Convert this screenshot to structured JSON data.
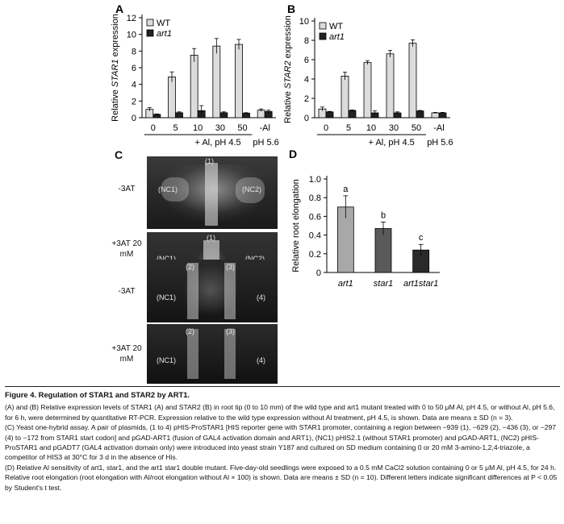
{
  "panels": {
    "A": {
      "letter": "A"
    },
    "B": {
      "letter": "B"
    },
    "C": {
      "letter": "C",
      "row_labels": [
        "-3AT",
        "+3AT 20 mM",
        "-3AT",
        "+3AT 20 mM"
      ],
      "spots": {
        "p1": "(1)",
        "p2": "(2)",
        "p3": "(3)",
        "p4": "(4)",
        "nc1": "(NC1)",
        "nc2": "(NC2)"
      }
    },
    "D": {
      "letter": "D"
    }
  },
  "chart_data": [
    {
      "type": "bar",
      "panel": "A",
      "ylabel": "Relative STAR1 expression",
      "ylim": [
        0,
        12
      ],
      "yticks": [
        0,
        2,
        4,
        6,
        8,
        10,
        12
      ],
      "categories": [
        "0",
        "5",
        "10",
        "30",
        "50",
        "-Al"
      ],
      "group_labels": [
        "+ Al, pH 4.5",
        "pH 5.6"
      ],
      "legend": [
        "WT",
        "art1"
      ],
      "series": [
        {
          "name": "WT",
          "color": "#dcdcdc",
          "values": [
            1.0,
            4.9,
            7.5,
            8.6,
            8.8,
            0.9
          ],
          "errors": [
            0.2,
            0.6,
            0.8,
            0.9,
            0.6,
            0.15
          ]
        },
        {
          "name": "art1",
          "color": "#222222",
          "values": [
            0.4,
            0.6,
            0.85,
            0.6,
            0.55,
            0.75
          ],
          "errors": [
            0.05,
            0.1,
            0.6,
            0.1,
            0.05,
            0.15
          ]
        }
      ]
    },
    {
      "type": "bar",
      "panel": "B",
      "ylabel": "Relative STAR2 expression",
      "ylim": [
        0,
        10
      ],
      "yticks": [
        0,
        2,
        4,
        6,
        8,
        10
      ],
      "categories": [
        "0",
        "5",
        "10",
        "30",
        "50",
        "-Al"
      ],
      "group_labels": [
        "+ Al, pH 4.5",
        "pH 5.6"
      ],
      "legend": [
        "WT",
        "art1"
      ],
      "series": [
        {
          "name": "WT",
          "color": "#dcdcdc",
          "values": [
            0.9,
            4.3,
            5.7,
            6.6,
            7.7,
            0.5
          ],
          "errors": [
            0.2,
            0.4,
            0.2,
            0.35,
            0.35,
            0.05
          ]
        },
        {
          "name": "art1",
          "color": "#222222",
          "values": [
            0.6,
            0.75,
            0.5,
            0.5,
            0.7,
            0.5
          ],
          "errors": [
            0.05,
            0.05,
            0.2,
            0.1,
            0.05,
            0.05
          ]
        }
      ]
    },
    {
      "type": "bar",
      "panel": "D",
      "ylabel": "Relative root elongation",
      "ylim": [
        0,
        1.0
      ],
      "yticks": [
        "0",
        "0.2",
        "0.4",
        "0.6",
        "0.8",
        "1.0"
      ],
      "categories": [
        "art1",
        "star1",
        "art1star1"
      ],
      "values": [
        0.7,
        0.47,
        0.24
      ],
      "errors": [
        0.12,
        0.07,
        0.06
      ],
      "letters": [
        "a",
        "b",
        "c"
      ],
      "colors": [
        "#a8a8a8",
        "#5a5a5a",
        "#2a2a2a"
      ]
    }
  ],
  "caption": {
    "title": "Figure 4. Regulation of STAR1 and STAR2 by ART1.",
    "ab": "(A) and (B) Relative expression levels of STAR1 (A) and STAR2 (B) in root tip (0 to 10 mm) of the wild type and art1 mutant treated with 0 to 50 μM Al, pH 4.5, or without Al, pH 5.6, for 6 h, were determined by quantitative RT-PCR. Expression relative to the wild type expression without Al treatment, pH 4.5, is shown. Data are means ± SD (n = 3).",
    "c": "(C) Yeast one-hybrid assay. A pair of plasmids, (1 to 4) pHIS-ProSTAR1 [HIS reporter gene with STAR1 promoter, containing a region between −939 (1), −629 (2), −436 (3), or −297 (4) to −172 from STAR1 start codon] and pGAD-ART1 (fusion of GAL4 activation domain and ART1), (NC1) pHIS2.1 (without STAR1 promoter) and pGAD-ART1, (NC2) pHIS-ProSTAR1 and pGADT7 (GAL4 activation domain only) were introduced into yeast strain Y187 and cultured on SD medium containing 0 or 20 mM 3-amino-1,2,4-triazole, a competitor of HIS3 at 30°C for 3 d in the absence of His.",
    "d": "(D) Relative Al sensitivity of art1, star1, and the art1 star1 double mutant. Five-day-old seedlings were exposed to a 0.5 mM CaCl2 solution containing 0 or 5 μM Al, pH 4.5, for 24 h. Relative root elongation (root elongation with Al/root elongation without Al × 100) is shown. Data are means ± SD (n = 10). Different letters indicate significant differences at P < 0.05 by Student's t test."
  }
}
